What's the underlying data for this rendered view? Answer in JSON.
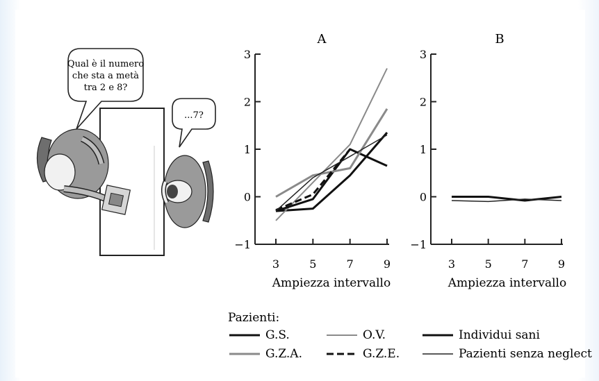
{
  "illustration": {
    "speech_left": [
      "Qual è il numero",
      "che sta a metà",
      "tra 2 e 8?"
    ],
    "speech_right": "...7?"
  },
  "chart_data": [
    {
      "type": "line",
      "title": "A",
      "xlabel": "Ampiezza intervallo",
      "ylabel": "",
      "x": [
        3,
        5,
        7,
        9
      ],
      "xlim": [
        2.5,
        9
      ],
      "ylim": [
        -1,
        3
      ],
      "yticks": [
        -1,
        0,
        1,
        2,
        3
      ],
      "series": [
        {
          "name": "G.S.",
          "values": [
            -0.3,
            -0.25,
            0.45,
            1.35
          ]
        },
        {
          "name": "O.V.",
          "values": [
            -0.5,
            0.3,
            1.1,
            2.7
          ]
        },
        {
          "name": "Individui sani",
          "values": [
            -0.3,
            -0.05,
            1.0,
            0.65
          ]
        },
        {
          "name": "G.Z.A.",
          "values": [
            0.0,
            0.45,
            0.6,
            1.85
          ]
        },
        {
          "name": "G.Z.E.",
          "values": [
            -0.28,
            0.05,
            1.0,
            null
          ]
        },
        {
          "name": "Pazienti senza neglect",
          "values": [
            -0.3,
            0.4,
            0.85,
            1.3
          ]
        }
      ]
    },
    {
      "type": "line",
      "title": "B",
      "xlabel": "Ampiezza intervallo",
      "ylabel": "",
      "x": [
        3,
        5,
        7,
        9
      ],
      "xlim": [
        2.5,
        9
      ],
      "ylim": [
        -1,
        3
      ],
      "yticks": [
        -1,
        0,
        1,
        2,
        3
      ],
      "series": [
        {
          "name": "Individui sani",
          "values": [
            0.0,
            0.0,
            -0.08,
            0.0
          ]
        },
        {
          "name": "Pazienti senza neglect",
          "values": [
            -0.08,
            -0.1,
            -0.05,
            -0.08
          ]
        }
      ]
    }
  ],
  "legend": {
    "title": "Pazienti:",
    "items": [
      {
        "label": "G.S.",
        "color": "#111111",
        "width": 3,
        "dash": ""
      },
      {
        "label": "O.V.",
        "color": "#8a8a8a",
        "width": 2,
        "dash": ""
      },
      {
        "label": "Individui sani",
        "color": "#111111",
        "width": 3,
        "dash": ""
      },
      {
        "label": "G.Z.A.",
        "color": "#8a8a8a",
        "width": 3,
        "dash": ""
      },
      {
        "label": "G.Z.E.",
        "color": "#111111",
        "width": 3,
        "dash": "10,5"
      },
      {
        "label": "Pazienti senza neglect",
        "color": "#222222",
        "width": 1.5,
        "dash": ""
      }
    ]
  }
}
